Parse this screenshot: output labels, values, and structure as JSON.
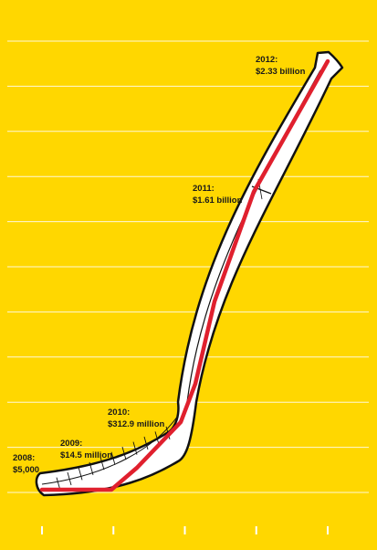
{
  "colors": {
    "background": "#FFD700",
    "gridline": "#FFFFFF",
    "stick_fill": "#FFFFFF",
    "stick_outline": "#111111",
    "data_line": "#E0202E"
  },
  "chart_data": {
    "type": "line",
    "x": [
      2008,
      2009,
      2010,
      2011,
      2012
    ],
    "values": [
      5000,
      14500000,
      312900000,
      1610000000,
      2330000000
    ],
    "ylim": [
      0,
      2330000000
    ],
    "grid": true,
    "data_labels": [
      {
        "year": "2008:",
        "value": "$5,000"
      },
      {
        "year": "2009:",
        "value": "$14.5 million"
      },
      {
        "year": "2010:",
        "value": "$312.9 million"
      },
      {
        "year": "2011:",
        "value": "$1.61 billion"
      },
      {
        "year": "2012:",
        "value": "$2.33 billion"
      }
    ]
  }
}
